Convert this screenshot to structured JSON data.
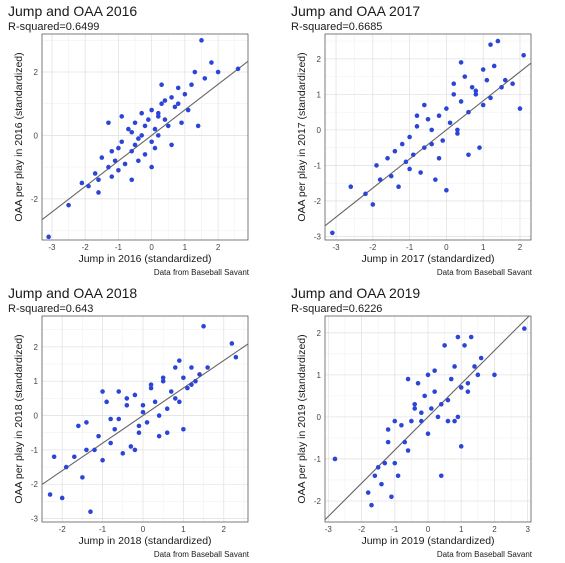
{
  "caption": "Data from Baseball Savant",
  "chart_data": [
    {
      "type": "scatter",
      "title": "Jump and OAA 2016",
      "subtitle": "R-squared=0.6499",
      "xlabel": "Jump in 2016 (standardized)",
      "ylabel": "OAA per play in 2016 (standardized)",
      "xlim": [
        -3.3,
        2.9
      ],
      "ylim": [
        -3.3,
        3.2
      ],
      "xticks": [
        -3,
        -2,
        -1,
        0,
        1,
        2
      ],
      "yticks": [
        -2,
        0,
        2
      ],
      "fit": {
        "slope": 0.806,
        "intercept": 0.0
      },
      "x": [
        -3.1,
        -2.5,
        -2.1,
        -1.9,
        -1.7,
        -1.6,
        -1.5,
        -1.3,
        -1.2,
        -1.1,
        -1.0,
        -1.0,
        -0.9,
        -0.8,
        -0.7,
        -0.6,
        -0.5,
        -0.5,
        -0.4,
        -0.3,
        -0.2,
        -0.2,
        -0.1,
        0.0,
        0.0,
        0.1,
        0.2,
        0.2,
        0.3,
        0.4,
        0.5,
        0.6,
        0.7,
        0.8,
        1.0,
        1.1,
        1.2,
        1.3,
        1.5,
        1.6,
        1.8,
        2.0,
        2.6,
        -1.6,
        -1.2,
        -0.9,
        -0.6,
        -0.3,
        0.0,
        0.3,
        0.6,
        0.9,
        -1.3,
        -0.6,
        0.1,
        0.4,
        0.8,
        1.4,
        -0.4,
        0.2
      ],
      "y": [
        -3.2,
        -2.2,
        -1.5,
        -1.6,
        -1.2,
        -1.4,
        -0.7,
        -1.0,
        -1.3,
        -0.8,
        -0.4,
        -1.1,
        -0.2,
        -0.9,
        0.2,
        -0.5,
        0.4,
        -0.3,
        -0.1,
        0.0,
        0.3,
        -0.6,
        0.5,
        -0.2,
        0.8,
        0.2,
        0.6,
        0.0,
        1.0,
        0.5,
        0.3,
        1.2,
        0.9,
        1.5,
        1.3,
        0.8,
        1.6,
        2.0,
        3.0,
        1.8,
        2.3,
        2.0,
        2.1,
        -1.8,
        -0.5,
        0.6,
        -1.4,
        0.7,
        -1.0,
        1.6,
        -0.3,
        0.4,
        0.4,
        0.1,
        -0.4,
        1.1,
        1.0,
        0.3,
        -0.8,
        0.7
      ]
    },
    {
      "type": "scatter",
      "title": "Jump and OAA 2017",
      "subtitle": "R-squared=0.6685",
      "xlabel": "Jump in 2017 (standardized)",
      "ylabel": "OAA per play in 2017 (standardized)",
      "xlim": [
        -3.3,
        2.3
      ],
      "ylim": [
        -3.1,
        2.7
      ],
      "xticks": [
        -3,
        -2,
        -1,
        0,
        1,
        2
      ],
      "yticks": [
        -3,
        -2,
        -1,
        0,
        1,
        2
      ],
      "fit": {
        "slope": 0.818,
        "intercept": 0.0
      },
      "x": [
        -3.1,
        -2.6,
        -2.2,
        -2.0,
        -1.9,
        -1.8,
        -1.6,
        -1.5,
        -1.4,
        -1.3,
        -1.2,
        -1.1,
        -1.0,
        -0.9,
        -0.8,
        -0.7,
        -0.6,
        -0.5,
        -0.4,
        -0.3,
        -0.2,
        -0.1,
        0.0,
        0.1,
        0.2,
        0.3,
        0.4,
        0.5,
        0.6,
        0.7,
        0.8,
        0.9,
        1.0,
        1.1,
        1.2,
        1.3,
        1.4,
        1.6,
        2.0,
        2.1,
        -1.0,
        -0.6,
        -0.2,
        0.2,
        0.6,
        1.0,
        -0.8,
        0.0,
        0.4,
        0.8,
        1.2,
        -0.4,
        0.3,
        1.5,
        1.8
      ],
      "y": [
        -2.9,
        -1.6,
        -1.8,
        -2.1,
        -1.0,
        -1.4,
        -0.8,
        -1.3,
        -0.6,
        -1.6,
        -0.4,
        -0.9,
        -0.2,
        -0.7,
        0.1,
        -1.2,
        -0.5,
        0.3,
        0.0,
        -1.4,
        0.4,
        -0.3,
        0.6,
        0.2,
        1.0,
        -0.1,
        0.8,
        1.5,
        0.5,
        1.2,
        1.0,
        -0.5,
        1.7,
        1.4,
        2.4,
        1.8,
        2.5,
        1.4,
        0.6,
        2.1,
        -1.1,
        0.7,
        -0.8,
        1.3,
        -0.7,
        0.7,
        0.4,
        -1.7,
        1.9,
        1.1,
        0.9,
        -0.4,
        0.0,
        1.2,
        1.3
      ]
    },
    {
      "type": "scatter",
      "title": "Jump and OAA 2018",
      "subtitle": "R-squared=0.643",
      "xlabel": "Jump in 2018 (standardized)",
      "ylabel": "OAA per play in 2018 (standardized)",
      "xlim": [
        -2.5,
        2.6
      ],
      "ylim": [
        -3.1,
        2.9
      ],
      "xticks": [
        -2,
        -1,
        0,
        1,
        2
      ],
      "yticks": [
        -3,
        -2,
        -1,
        0,
        1,
        2
      ],
      "fit": {
        "slope": 0.802,
        "intercept": 0.0
      },
      "x": [
        -2.3,
        -2.2,
        -2.0,
        -1.9,
        -1.7,
        -1.5,
        -1.4,
        -1.3,
        -1.2,
        -1.1,
        -1.0,
        -0.9,
        -0.8,
        -0.7,
        -0.6,
        -0.5,
        -0.4,
        -0.3,
        -0.2,
        -0.1,
        0.0,
        0.1,
        0.2,
        0.3,
        0.4,
        0.5,
        0.6,
        0.7,
        0.8,
        0.9,
        1.0,
        1.1,
        1.2,
        1.3,
        1.4,
        1.5,
        1.6,
        2.2,
        2.3,
        -1.4,
        -1.0,
        -0.6,
        -0.2,
        0.2,
        0.6,
        1.0,
        -0.8,
        0.0,
        0.4,
        0.8,
        -1.6,
        -0.4,
        0.5,
        1.2,
        -0.1,
        0.9
      ],
      "y": [
        -2.3,
        -1.2,
        -2.4,
        -1.5,
        -1.2,
        -1.8,
        -0.2,
        -2.8,
        -1.0,
        -0.6,
        -1.3,
        0.4,
        -0.8,
        -0.4,
        0.7,
        -1.1,
        0.3,
        -0.9,
        0.6,
        -0.5,
        0.1,
        -0.2,
        0.8,
        0.4,
        0.0,
        1.0,
        -0.5,
        0.7,
        1.4,
        0.4,
        1.1,
        0.8,
        1.4,
        1.0,
        1.2,
        2.6,
        1.4,
        2.1,
        1.7,
        -1.0,
        0.7,
        -0.1,
        -1.0,
        0.9,
        0.2,
        -0.4,
        -0.1,
        0.3,
        -0.6,
        0.5,
        -0.3,
        0.5,
        1.1,
        0.9,
        -0.3,
        1.6
      ]
    },
    {
      "type": "scatter",
      "title": "Jump and OAA 2019",
      "subtitle": "R-squared=0.6226",
      "xlabel": "Jump in 2019 (standardized)",
      "ylabel": "OAA per play in 2019 (standardized)",
      "xlim": [
        -3.1,
        3.1
      ],
      "ylim": [
        -2.5,
        2.4
      ],
      "xticks": [
        -3,
        -2,
        -1,
        0,
        1,
        2,
        3
      ],
      "yticks": [
        -2,
        -1,
        0,
        1,
        2
      ],
      "fit": {
        "slope": 0.789,
        "intercept": 0.0
      },
      "x": [
        -2.8,
        -1.8,
        -1.7,
        -1.5,
        -1.4,
        -1.3,
        -1.2,
        -1.1,
        -1.0,
        -0.9,
        -0.8,
        -0.7,
        -0.6,
        -0.5,
        -0.4,
        -0.3,
        -0.2,
        -0.1,
        0.0,
        0.1,
        0.2,
        0.3,
        0.4,
        0.5,
        0.6,
        0.7,
        0.8,
        0.9,
        1.0,
        1.1,
        1.2,
        1.3,
        1.4,
        1.5,
        1.6,
        2.0,
        2.9,
        -1.6,
        -1.0,
        -0.6,
        -0.2,
        0.2,
        0.6,
        1.0,
        -1.2,
        -0.4,
        0.4,
        0.8,
        1.2,
        0.0,
        0.9
      ],
      "y": [
        -1.0,
        -1.8,
        -2.1,
        -1.2,
        -1.6,
        -1.1,
        -0.6,
        -1.9,
        -0.1,
        -1.4,
        -0.2,
        -0.6,
        0.9,
        -0.1,
        0.3,
        0.8,
        -0.1,
        0.5,
        1.0,
        0.2,
        0.6,
        0.0,
        -1.4,
        1.7,
        0.4,
        0.9,
        1.2,
        1.9,
        -0.7,
        1.7,
        0.6,
        1.9,
        1.2,
        1.0,
        1.4,
        1.0,
        2.1,
        -1.4,
        -1.1,
        -0.8,
        0.1,
        1.1,
        -0.1,
        0.7,
        -0.3,
        0.2,
        0.3,
        -0.1,
        0.8,
        -0.4,
        0.0
      ]
    }
  ]
}
